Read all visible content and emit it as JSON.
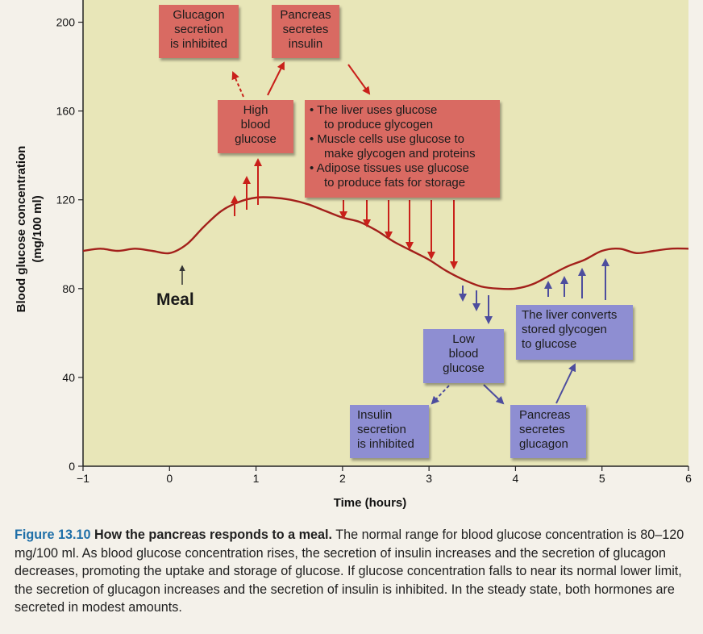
{
  "chart_data": {
    "type": "line",
    "xlabel": "Time (hours)",
    "ylabel_line1": "Blood glucose concentration",
    "ylabel_line2": "(mg/100 ml)",
    "xlim": [
      -1,
      6
    ],
    "ylim": [
      0,
      210
    ],
    "x_ticks": [
      -1,
      0,
      1,
      2,
      3,
      4,
      5,
      6
    ],
    "x_tick_labels": [
      "−1",
      "0",
      "1",
      "2",
      "3",
      "4",
      "5",
      "6"
    ],
    "y_ticks": [
      0,
      40,
      80,
      120,
      160,
      200
    ],
    "y_tick_labels": [
      "0",
      "40",
      "80",
      "120",
      "160",
      "200"
    ],
    "grid": false,
    "series": [
      {
        "x": [
          -1.0,
          -0.8,
          -0.6,
          -0.4,
          -0.2,
          0.0,
          0.2,
          0.4,
          0.6,
          0.8,
          1.0,
          1.2,
          1.4,
          1.6,
          1.8,
          2.0,
          2.2,
          2.4,
          2.6,
          2.8,
          3.0,
          3.2,
          3.4,
          3.6,
          3.8,
          4.0,
          4.2,
          4.4,
          4.6,
          4.8,
          5.0,
          5.2,
          5.4,
          5.6,
          5.8,
          6.0
        ],
        "y": [
          97,
          98,
          97,
          98,
          97,
          96,
          100,
          108,
          115,
          119,
          121,
          121,
          120,
          118,
          115,
          112,
          110,
          106,
          101,
          97,
          93,
          88,
          84,
          81,
          80,
          80,
          82,
          86,
          90,
          93,
          97,
          98,
          96,
          97,
          98,
          98
        ]
      }
    ],
    "colors": {
      "curve": "#a3201b",
      "plot_bg": "#e8e6b8",
      "arrow": "#c9201a",
      "blue_arrow": "#4d4d9e"
    }
  },
  "annotations": {
    "meal": "Meal",
    "glucagon_inhibited": [
      "Glucagon",
      "secretion",
      "is inhibited"
    ],
    "pancreas_insulin": [
      "Pancreas",
      "secretes",
      "insulin"
    ],
    "high_glucose": [
      "High",
      "blood",
      "glucose"
    ],
    "liver_uses": {
      "items": [
        [
          "The liver uses glucose",
          "to produce glycogen"
        ],
        [
          "Muscle cells use glucose to",
          "make glycogen and proteins"
        ],
        [
          "Adipose tissues use glucose",
          "to produce fats for storage"
        ]
      ]
    },
    "low_glucose": [
      "Low",
      "blood",
      "glucose"
    ],
    "liver_converts": [
      "The liver converts",
      "stored glycogen",
      "to glucose"
    ],
    "insulin_inhibited": [
      "Insulin",
      "secretion",
      "is inhibited"
    ],
    "pancreas_glucagon": [
      "Pancreas",
      "secretes",
      "glucagon"
    ]
  },
  "caption": {
    "number": "Figure 13.10",
    "title": "How the pancreas responds to a meal.",
    "body": "The normal range for blood glucose concentration is 80–120 mg/100 ml. As blood glucose concentration rises, the secretion of insulin increases and the secretion of glucagon decreases, promoting the uptake and storage of glucose. If glucose concentration falls to near its normal lower limit, the secretion of glucagon increases and the secretion of insulin is inhibited. In the steady state, both hormones are secreted in modest amounts."
  }
}
